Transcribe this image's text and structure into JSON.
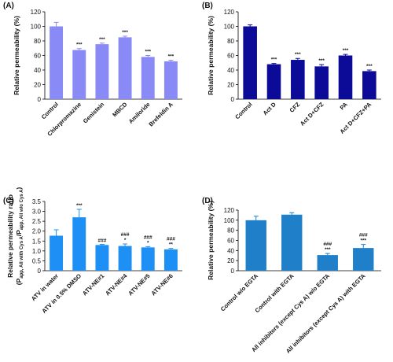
{
  "chart_data": [
    {
      "type": "bar",
      "title": "(A)",
      "y_label": "Relative permeability (%)",
      "categories": [
        "Control",
        "Chlorpromazine",
        "Genistein",
        "MBCD",
        "Amiloride",
        "Brefeldin A"
      ],
      "values": [
        100,
        67.5,
        75.5,
        85,
        58,
        52
      ],
      "errors": [
        5.5,
        2,
        1.5,
        1.5,
        2,
        1.5
      ],
      "annotations": [
        null,
        [
          "***"
        ],
        [
          "***"
        ],
        [
          "***"
        ],
        [
          "***"
        ],
        [
          "***"
        ]
      ],
      "color": "#8a8af7",
      "ylim": [
        0,
        120
      ],
      "yticks": [
        0,
        20,
        40,
        60,
        80,
        100,
        120
      ]
    },
    {
      "type": "bar",
      "title": "(B)",
      "y_label": "Relative permeability (%)",
      "categories": [
        "Control",
        "Act D",
        "CFZ",
        "Act D+CFZ",
        "PA",
        "Act D+CFZ+PA"
      ],
      "values": [
        100,
        48,
        54,
        45,
        60,
        38.5
      ],
      "errors": [
        2,
        1,
        2,
        2.5,
        1.5,
        1.5
      ],
      "annotations": [
        null,
        [
          "***"
        ],
        [
          "***"
        ],
        [
          "***"
        ],
        [
          "***"
        ],
        [
          "***"
        ]
      ],
      "color": "#0b0b98",
      "ylim": [
        0,
        120
      ],
      "yticks": [
        0,
        20,
        40,
        60,
        80,
        100,
        120
      ]
    },
    {
      "type": "bar",
      "title": "(C)",
      "y_label": "Relative permeability ratio",
      "y_label_2": [
        "(P",
        "app, All with Cys A",
        "/P",
        "app, All w/o Cys A",
        ")"
      ],
      "categories": [
        "ATV in water",
        "ATV in 0.5% DMSO",
        "ATV-NE#1",
        "ATV-NE#4",
        "ATV-NE#5",
        "ATV-NE#6"
      ],
      "values": [
        1.77,
        2.7,
        1.3,
        1.25,
        1.18,
        1.08
      ],
      "errors": [
        0.3,
        0.4,
        0.03,
        0.1,
        0.04,
        0.05
      ],
      "annotations": [
        null,
        [
          "***"
        ],
        [
          "###"
        ],
        [
          "###",
          "*"
        ],
        [
          "###",
          "*"
        ],
        [
          "###",
          "**"
        ]
      ],
      "color": "#1e8ff5",
      "ylim": [
        0,
        3.5
      ],
      "yticks": [
        0,
        0.5,
        {
          "value": 1,
          "label": "1.0"
        },
        1.5,
        {
          "value": 2,
          "label": "2.0"
        },
        2.5,
        {
          "value": 3,
          "label": "3.0"
        },
        3.5
      ]
    },
    {
      "type": "bar",
      "title": "(D)",
      "y_label": "Relative permeability (%)",
      "categories": [
        "Control w/o EGTA",
        "Control with EGTA",
        "All inhibitors (except Cys A) w/o EGTA",
        "All inhibitors (except Cys A) with EGTA"
      ],
      "values": [
        100,
        111,
        31,
        45
      ],
      "errors": [
        8,
        4,
        3,
        7
      ],
      "annotations": [
        null,
        null,
        [
          "###",
          "***"
        ],
        [
          "###",
          "***"
        ]
      ],
      "color": "#1f80c9",
      "ylim": [
        0,
        120
      ],
      "yticks": [
        0,
        20,
        40,
        60,
        80,
        100,
        120
      ]
    }
  ]
}
